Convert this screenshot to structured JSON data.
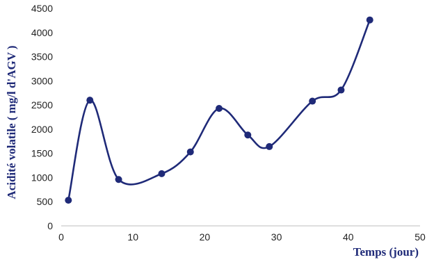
{
  "chart_data": {
    "type": "line",
    "title": "",
    "xlabel": "Temps (jour)",
    "ylabel": "Acidité volatile ( mg/l  d'AGV )",
    "xlim": [
      0,
      50
    ],
    "ylim": [
      0,
      4500
    ],
    "xticks": [
      0,
      10,
      20,
      30,
      40,
      50
    ],
    "yticks": [
      0,
      500,
      1000,
      1500,
      2000,
      2500,
      3000,
      3500,
      4000,
      4500
    ],
    "grid": false,
    "smooth": true,
    "color": "#1f2a78",
    "series": [
      {
        "x": [
          1,
          4,
          8,
          14,
          18,
          22,
          26,
          29,
          35,
          39,
          43
        ],
        "y": [
          530,
          2600,
          960,
          1080,
          1530,
          2430,
          1880,
          1640,
          2580,
          2810,
          4260
        ]
      }
    ]
  }
}
